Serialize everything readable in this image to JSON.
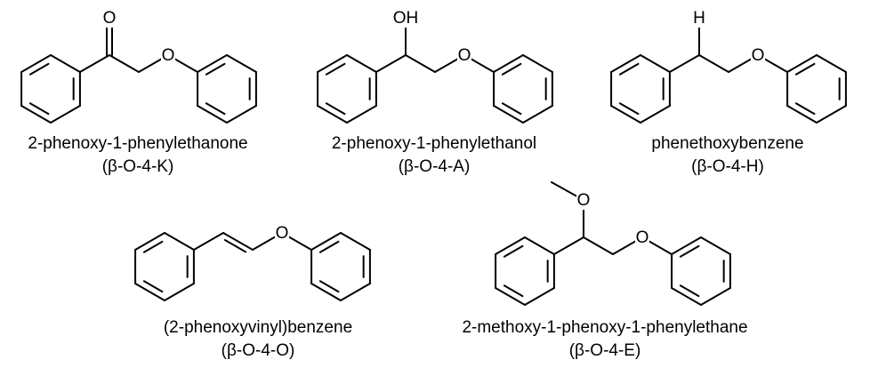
{
  "compounds": [
    {
      "atoms": [
        "O",
        "O"
      ],
      "name": "2-phenoxy-1-phenylethanone",
      "code": "(β-O-4-K)"
    },
    {
      "atoms": [
        "OH",
        "O"
      ],
      "name": "2-phenoxy-1-phenylethanol",
      "code": "(β-O-4-A)"
    },
    {
      "atoms": [
        "H",
        "O"
      ],
      "name": "phenethoxybenzene",
      "code": "(β-O-4-H)"
    },
    {
      "atoms": [
        "O"
      ],
      "name": "(2-phenoxyvinyl)benzene",
      "code": "(β-O-4-O)"
    },
    {
      "atoms": [
        "O",
        "O"
      ],
      "name": "2-methoxy-1-phenoxy-1-phenylethane",
      "code": "(β-O-4-E)"
    }
  ]
}
